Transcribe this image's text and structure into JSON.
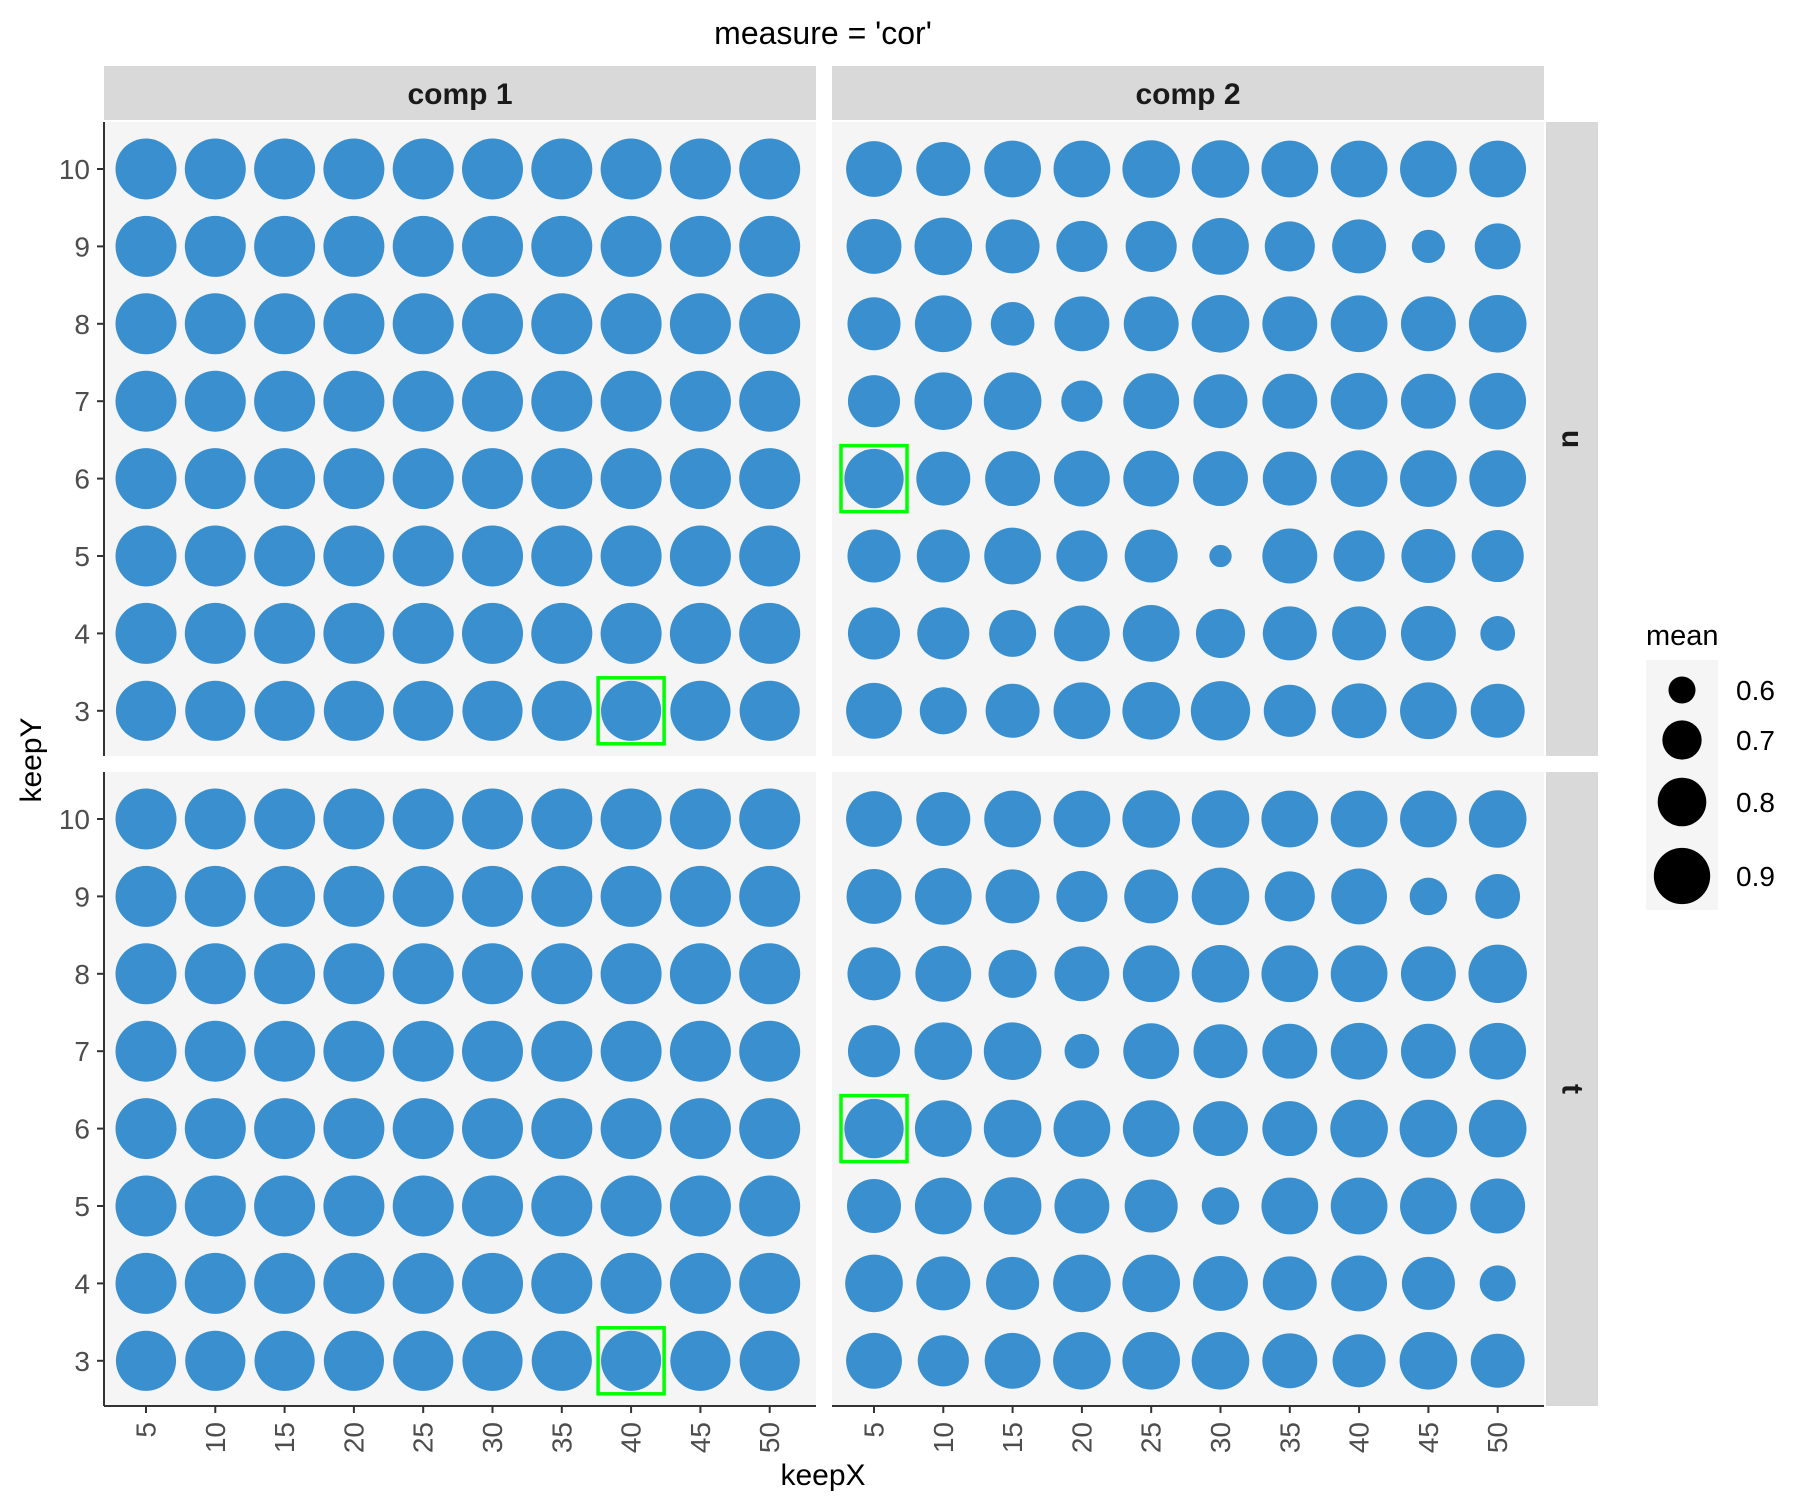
{
  "chart_data": {
    "type": "scatter",
    "title": "measure = 'cor'",
    "xlabel": "keepX",
    "ylabel": "keepY",
    "x_ticks": [
      5,
      10,
      15,
      20,
      25,
      30,
      35,
      40,
      45,
      50
    ],
    "y_ticks": [
      3,
      4,
      5,
      6,
      7,
      8,
      9,
      10
    ],
    "column_facets": [
      "comp 1",
      "comp 2"
    ],
    "row_facets": [
      "u",
      "t"
    ],
    "point_color": "#3a8fcf",
    "highlight_color": "#00ff00",
    "panel_background": "#f5f5f5",
    "strip_background": "#d9d9d9",
    "legend": {
      "title": "mean",
      "position": "right",
      "breaks": [
        0.6,
        0.7,
        0.8,
        0.9
      ],
      "labels": [
        "0.6",
        "0.7",
        "0.8",
        "0.9"
      ]
    },
    "panels": [
      {
        "comp": "comp 1",
        "block": "u",
        "highlight": {
          "keepX": 40,
          "keepY": 3
        },
        "rows": [
          {
            "keepY": 10,
            "mean": [
              0.88,
              0.88,
              0.88,
              0.88,
              0.88,
              0.88,
              0.88,
              0.88,
              0.88,
              0.88
            ]
          },
          {
            "keepY": 9,
            "mean": [
              0.88,
              0.88,
              0.88,
              0.88,
              0.88,
              0.88,
              0.88,
              0.88,
              0.88,
              0.88
            ]
          },
          {
            "keepY": 8,
            "mean": [
              0.88,
              0.88,
              0.88,
              0.88,
              0.88,
              0.88,
              0.88,
              0.88,
              0.88,
              0.88
            ]
          },
          {
            "keepY": 7,
            "mean": [
              0.88,
              0.88,
              0.88,
              0.88,
              0.88,
              0.88,
              0.88,
              0.88,
              0.88,
              0.88
            ]
          },
          {
            "keepY": 6,
            "mean": [
              0.88,
              0.88,
              0.88,
              0.88,
              0.88,
              0.88,
              0.88,
              0.88,
              0.88,
              0.88
            ]
          },
          {
            "keepY": 5,
            "mean": [
              0.88,
              0.88,
              0.88,
              0.88,
              0.88,
              0.88,
              0.88,
              0.88,
              0.88,
              0.88
            ]
          },
          {
            "keepY": 4,
            "mean": [
              0.88,
              0.88,
              0.88,
              0.88,
              0.88,
              0.88,
              0.88,
              0.88,
              0.88,
              0.88
            ]
          },
          {
            "keepY": 3,
            "mean": [
              0.87,
              0.87,
              0.87,
              0.87,
              0.87,
              0.87,
              0.87,
              0.87,
              0.87,
              0.87
            ]
          }
        ]
      },
      {
        "comp": "comp 2",
        "block": "u",
        "highlight": {
          "keepX": 5,
          "keepY": 6
        },
        "rows": [
          {
            "keepY": 10,
            "mean": [
              0.82,
              0.8,
              0.83,
              0.83,
              0.84,
              0.84,
              0.83,
              0.83,
              0.83,
              0.83
            ]
          },
          {
            "keepY": 9,
            "mean": [
              0.81,
              0.84,
              0.8,
              0.77,
              0.77,
              0.83,
              0.76,
              0.8,
              0.62,
              0.72
            ]
          },
          {
            "keepY": 8,
            "mean": [
              0.79,
              0.83,
              0.7,
              0.81,
              0.81,
              0.84,
              0.81,
              0.83,
              0.81,
              0.84
            ]
          },
          {
            "keepY": 7,
            "mean": [
              0.78,
              0.84,
              0.84,
              0.68,
              0.82,
              0.8,
              0.81,
              0.83,
              0.81,
              0.83
            ]
          },
          {
            "keepY": 6,
            "mean": [
              0.86,
              0.8,
              0.81,
              0.82,
              0.82,
              0.81,
              0.8,
              0.83,
              0.83,
              0.83
            ]
          },
          {
            "keepY": 5,
            "mean": [
              0.79,
              0.79,
              0.83,
              0.77,
              0.79,
              0.56,
              0.81,
              0.77,
              0.8,
              0.78
            ]
          },
          {
            "keepY": 4,
            "mean": [
              0.78,
              0.78,
              0.73,
              0.82,
              0.83,
              0.75,
              0.8,
              0.8,
              0.81,
              0.63
            ]
          },
          {
            "keepY": 3,
            "mean": [
              0.82,
              0.73,
              0.8,
              0.83,
              0.84,
              0.86,
              0.78,
              0.81,
              0.83,
              0.8
            ]
          }
        ]
      },
      {
        "comp": "comp 1",
        "block": "t",
        "highlight": {
          "keepX": 40,
          "keepY": 3
        },
        "rows": [
          {
            "keepY": 10,
            "mean": [
              0.88,
              0.88,
              0.88,
              0.88,
              0.88,
              0.88,
              0.88,
              0.88,
              0.88,
              0.88
            ]
          },
          {
            "keepY": 9,
            "mean": [
              0.88,
              0.88,
              0.88,
              0.88,
              0.88,
              0.88,
              0.88,
              0.88,
              0.88,
              0.88
            ]
          },
          {
            "keepY": 8,
            "mean": [
              0.88,
              0.88,
              0.88,
              0.88,
              0.88,
              0.88,
              0.88,
              0.88,
              0.88,
              0.88
            ]
          },
          {
            "keepY": 7,
            "mean": [
              0.88,
              0.88,
              0.88,
              0.88,
              0.88,
              0.88,
              0.88,
              0.88,
              0.88,
              0.88
            ]
          },
          {
            "keepY": 6,
            "mean": [
              0.88,
              0.88,
              0.88,
              0.88,
              0.88,
              0.88,
              0.88,
              0.88,
              0.88,
              0.88
            ]
          },
          {
            "keepY": 5,
            "mean": [
              0.88,
              0.88,
              0.88,
              0.88,
              0.88,
              0.88,
              0.88,
              0.88,
              0.88,
              0.88
            ]
          },
          {
            "keepY": 4,
            "mean": [
              0.88,
              0.88,
              0.88,
              0.88,
              0.88,
              0.88,
              0.88,
              0.88,
              0.88,
              0.88
            ]
          },
          {
            "keepY": 3,
            "mean": [
              0.87,
              0.87,
              0.87,
              0.87,
              0.87,
              0.87,
              0.87,
              0.87,
              0.87,
              0.87
            ]
          }
        ]
      },
      {
        "comp": "comp 2",
        "block": "t",
        "highlight": {
          "keepX": 5,
          "keepY": 6
        },
        "rows": [
          {
            "keepY": 10,
            "mean": [
              0.82,
              0.8,
              0.83,
              0.83,
              0.84,
              0.84,
              0.83,
              0.83,
              0.83,
              0.84
            ]
          },
          {
            "keepY": 9,
            "mean": [
              0.81,
              0.83,
              0.8,
              0.77,
              0.8,
              0.84,
              0.76,
              0.82,
              0.65,
              0.71
            ]
          },
          {
            "keepY": 8,
            "mean": [
              0.79,
              0.82,
              0.74,
              0.81,
              0.83,
              0.84,
              0.83,
              0.83,
              0.81,
              0.85
            ]
          },
          {
            "keepY": 7,
            "mean": [
              0.78,
              0.84,
              0.84,
              0.63,
              0.82,
              0.8,
              0.81,
              0.83,
              0.81,
              0.83
            ]
          },
          {
            "keepY": 6,
            "mean": [
              0.86,
              0.83,
              0.84,
              0.83,
              0.83,
              0.81,
              0.81,
              0.84,
              0.84,
              0.84
            ]
          },
          {
            "keepY": 5,
            "mean": [
              0.8,
              0.83,
              0.84,
              0.81,
              0.79,
              0.65,
              0.83,
              0.83,
              0.83,
              0.81
            ]
          },
          {
            "keepY": 4,
            "mean": [
              0.84,
              0.8,
              0.79,
              0.84,
              0.84,
              0.81,
              0.8,
              0.82,
              0.79,
              0.64
            ]
          },
          {
            "keepY": 3,
            "mean": [
              0.82,
              0.77,
              0.82,
              0.84,
              0.84,
              0.84,
              0.81,
              0.79,
              0.84,
              0.8
            ]
          }
        ]
      }
    ]
  }
}
